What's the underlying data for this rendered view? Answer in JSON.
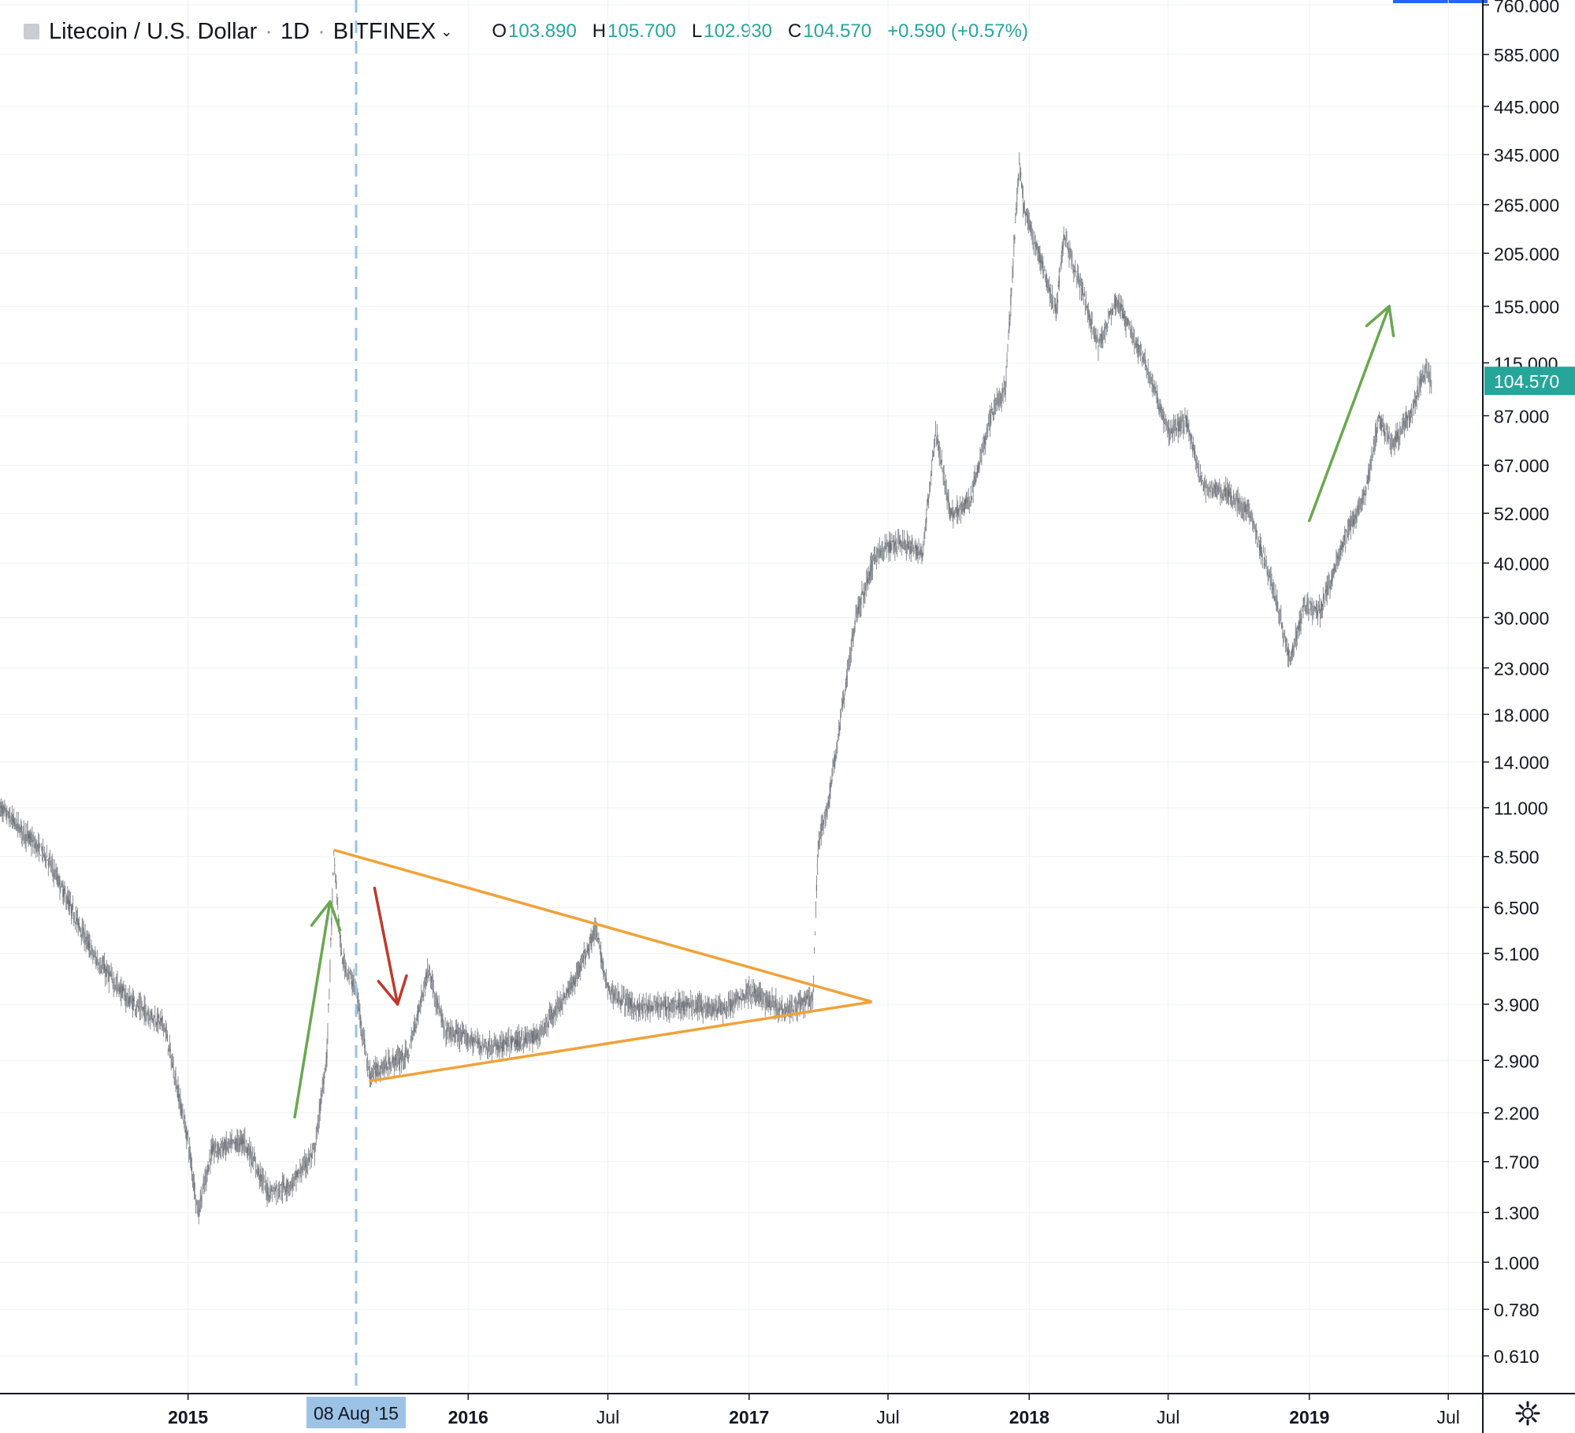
{
  "header": {
    "symbol": "Litecoin / U.S. Dollar",
    "interval": "1D",
    "exchange": "BITFINEX",
    "open_label": "O",
    "open": "103.890",
    "high_label": "H",
    "high": "105.700",
    "low_label": "L",
    "low": "102.930",
    "close_label": "C",
    "close": "104.570",
    "change": "+0.590 (+0.57%)"
  },
  "colors": {
    "up": "#26a69a",
    "down": "#ef5350",
    "candle": "#8a8d93",
    "triangle": "#f0a23a",
    "green_arrow": "#6aa84f",
    "red_arrow": "#c0392b",
    "crosshair": "#9cc3e6",
    "date_highlight": "#9cc3e6",
    "grid": "#eef0f3"
  },
  "icons": {
    "settings": "gear-icon",
    "dropdown": "chevron-down-icon"
  },
  "chart_data": {
    "type": "candlestick",
    "title": "Litecoin / U.S. Dollar",
    "y_scale": "log",
    "ylim": [
      0.5,
      780
    ],
    "y_ticks": [
      "760.000",
      "585.000",
      "445.000",
      "345.000",
      "265.000",
      "205.000",
      "155.000",
      "115.000",
      "87.000",
      "67.000",
      "52.000",
      "40.000",
      "30.000",
      "23.000",
      "18.000",
      "14.000",
      "11.000",
      "8.500",
      "6.500",
      "5.100",
      "3.900",
      "2.900",
      "2.200",
      "1.700",
      "1.300",
      "1.000",
      "0.780",
      "0.610"
    ],
    "x_range": [
      "2014-05-01",
      "2019-08-15"
    ],
    "x_ticks": [
      {
        "label": "2015",
        "date": "2015-01-01"
      },
      {
        "label": "2016",
        "date": "2016-01-01"
      },
      {
        "label": "Jul",
        "date": "2016-07-01"
      },
      {
        "label": "2017",
        "date": "2017-01-01"
      },
      {
        "label": "Jul",
        "date": "2017-07-01"
      },
      {
        "label": "2018",
        "date": "2018-01-01"
      },
      {
        "label": "Jul",
        "date": "2018-07-01"
      },
      {
        "label": "2019",
        "date": "2019-01-01"
      },
      {
        "label": "Jul",
        "date": "2019-07-01"
      }
    ],
    "crosshair_date_label": "08 Aug '15",
    "crosshair_date": "2015-08-08",
    "last_price_label": "104.570",
    "last_price": 104.57,
    "price_path": [
      [
        "2014-05-01",
        11.0
      ],
      [
        "2014-07-01",
        8.5
      ],
      [
        "2014-09-01",
        5.0
      ],
      [
        "2014-10-15",
        4.0
      ],
      [
        "2014-12-01",
        3.5
      ],
      [
        "2015-01-01",
        1.9
      ],
      [
        "2015-01-14",
        1.3
      ],
      [
        "2015-02-01",
        1.8
      ],
      [
        "2015-03-15",
        1.9
      ],
      [
        "2015-04-15",
        1.45
      ],
      [
        "2015-05-15",
        1.5
      ],
      [
        "2015-06-15",
        1.8
      ],
      [
        "2015-07-01",
        3.0
      ],
      [
        "2015-07-10",
        8.5
      ],
      [
        "2015-07-20",
        5.0
      ],
      [
        "2015-08-08",
        4.2
      ],
      [
        "2015-08-25",
        2.7
      ],
      [
        "2015-10-15",
        3.0
      ],
      [
        "2015-11-10",
        4.7
      ],
      [
        "2015-12-01",
        3.4
      ],
      [
        "2016-02-01",
        3.1
      ],
      [
        "2016-04-01",
        3.3
      ],
      [
        "2016-05-15",
        4.3
      ],
      [
        "2016-06-15",
        5.8
      ],
      [
        "2016-07-01",
        4.2
      ],
      [
        "2016-08-10",
        3.8
      ],
      [
        "2016-10-01",
        3.9
      ],
      [
        "2016-12-01",
        3.8
      ],
      [
        "2017-01-01",
        4.2
      ],
      [
        "2017-02-15",
        3.8
      ],
      [
        "2017-03-25",
        4.0
      ],
      [
        "2017-04-01",
        9.0
      ],
      [
        "2017-04-15",
        11.5
      ],
      [
        "2017-05-01",
        18.0
      ],
      [
        "2017-05-20",
        30.0
      ],
      [
        "2017-06-15",
        42.0
      ],
      [
        "2017-07-15",
        45.0
      ],
      [
        "2017-08-15",
        42.0
      ],
      [
        "2017-09-01",
        80.0
      ],
      [
        "2017-09-20",
        52.0
      ],
      [
        "2017-10-15",
        55.0
      ],
      [
        "2017-11-15",
        90.0
      ],
      [
        "2017-12-01",
        100.0
      ],
      [
        "2017-12-19",
        330.0
      ],
      [
        "2017-12-25",
        260.0
      ],
      [
        "2018-01-15",
        200.0
      ],
      [
        "2018-02-05",
        150.0
      ],
      [
        "2018-02-15",
        225.0
      ],
      [
        "2018-03-15",
        160.0
      ],
      [
        "2018-04-01",
        125.0
      ],
      [
        "2018-04-25",
        160.0
      ],
      [
        "2018-06-01",
        115.0
      ],
      [
        "2018-07-01",
        80.0
      ],
      [
        "2018-07-25",
        85.0
      ],
      [
        "2018-08-15",
        60.0
      ],
      [
        "2018-09-15",
        58.0
      ],
      [
        "2018-10-15",
        52.0
      ],
      [
        "2018-11-15",
        35.0
      ],
      [
        "2018-12-07",
        24.0
      ],
      [
        "2018-12-25",
        32.0
      ],
      [
        "2019-01-15",
        31.0
      ],
      [
        "2019-02-15",
        45.0
      ],
      [
        "2019-03-15",
        58.0
      ],
      [
        "2019-04-01",
        85.0
      ],
      [
        "2019-04-20",
        75.0
      ],
      [
        "2019-05-15",
        90.0
      ],
      [
        "2019-06-01",
        112.0
      ],
      [
        "2019-06-09",
        104.57
      ]
    ],
    "annotations": {
      "triangle": {
        "upper": [
          [
            "2015-07-10",
            8.8
          ],
          [
            "2017-06-10",
            3.95
          ]
        ],
        "lower": [
          [
            "2015-08-25",
            2.6
          ],
          [
            "2017-06-10",
            3.95
          ]
        ]
      },
      "arrows": [
        {
          "color": "green",
          "from": [
            "2015-05-20",
            2.15
          ],
          "to": [
            "2015-07-05",
            6.7
          ]
        },
        {
          "color": "red",
          "from": [
            "2015-09-01",
            7.2
          ],
          "to": [
            "2015-10-01",
            3.9
          ]
        },
        {
          "color": "green",
          "from": [
            "2019-01-01",
            50.0
          ],
          "to": [
            "2019-04-15",
            155.0
          ]
        }
      ]
    }
  }
}
